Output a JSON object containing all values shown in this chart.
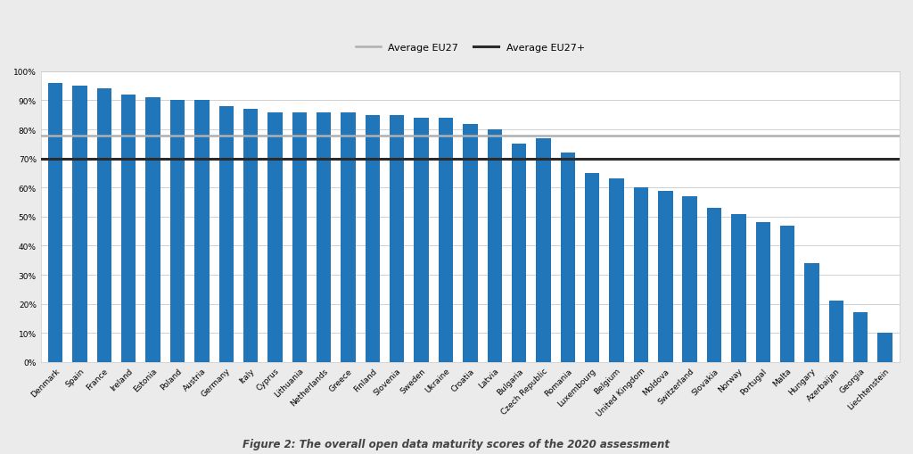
{
  "categories": [
    "Denmark",
    "Spain",
    "France",
    "Ireland",
    "Estonia",
    "Poland",
    "Austria",
    "Germany",
    "Italy",
    "Cyprus",
    "Lithuania",
    "Netherlands",
    "Greece",
    "Finland",
    "Slovenia",
    "Sweden",
    "Ukraine",
    "Croatia",
    "Latvia",
    "Bulgaria",
    "Czech Republic",
    "Romania",
    "Luxembourg",
    "Belgium",
    "United Kingdom",
    "Moldova",
    "Switzerland",
    "Slovakia",
    "Norway",
    "Portugal",
    "Malta",
    "Hungary",
    "Azerbaijan",
    "Georgia",
    "Liechtenstein"
  ],
  "values": [
    96,
    95,
    94,
    92,
    91,
    90,
    90,
    88,
    87,
    86,
    86,
    86,
    86,
    85,
    85,
    84,
    84,
    82,
    80,
    75,
    77,
    72,
    65,
    63,
    60,
    59,
    57,
    53,
    51,
    48,
    47,
    34,
    21,
    17,
    10
  ],
  "bar_color": "#2176ba",
  "avg_eu27": 78,
  "avg_eu27plus": 70,
  "avg_eu27_color": "#b0b0b0",
  "avg_eu27plus_color": "#2b2b2b",
  "avg_eu27_label": "Average EU27",
  "avg_eu27plus_label": "Average EU27+",
  "ylabel_ticks": [
    "0%",
    "10%",
    "20%",
    "30%",
    "40%",
    "50%",
    "60%",
    "70%",
    "80%",
    "90%",
    "100%"
  ],
  "ytick_values": [
    0,
    10,
    20,
    30,
    40,
    50,
    60,
    70,
    80,
    90,
    100
  ],
  "caption": "Figure 2: The overall open data maturity scores of the 2020 assessment",
  "outer_background": "#ebebeb",
  "inner_background": "#ffffff",
  "grid_color": "#d0d0d0",
  "border_color": "#cccccc",
  "tick_fontsize": 6.5,
  "legend_fontsize": 8,
  "caption_fontsize": 8.5
}
